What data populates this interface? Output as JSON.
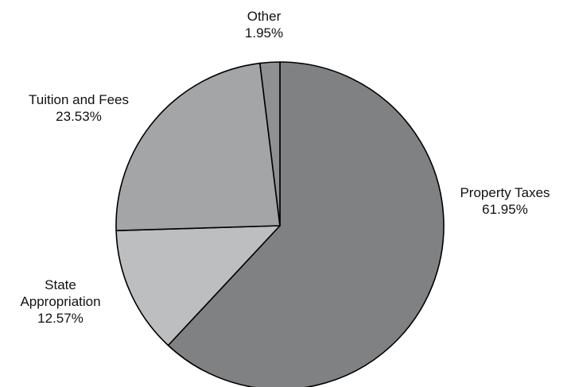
{
  "chart_data": {
    "type": "pie",
    "title": "",
    "start_angle_deg": 0,
    "direction": "clockwise",
    "legend": "none",
    "slices": [
      {
        "name": "Property Taxes",
        "label_lines": [
          "Property Taxes"
        ],
        "value": 61.95,
        "value_label": "61.95%",
        "color": "#808182"
      },
      {
        "name": "State Appropriation",
        "label_lines": [
          "State",
          "Appropriation"
        ],
        "value": 12.57,
        "value_label": "12.57%",
        "color": "#bdbec0"
      },
      {
        "name": "Tuition and Fees",
        "label_lines": [
          "Tuition and Fees"
        ],
        "value": 23.53,
        "value_label": "23.53%",
        "color": "#a4a5a7"
      },
      {
        "name": "Other",
        "label_lines": [
          "Other"
        ],
        "value": 1.95,
        "value_label": "1.95%",
        "color": "#8f9092"
      }
    ]
  }
}
